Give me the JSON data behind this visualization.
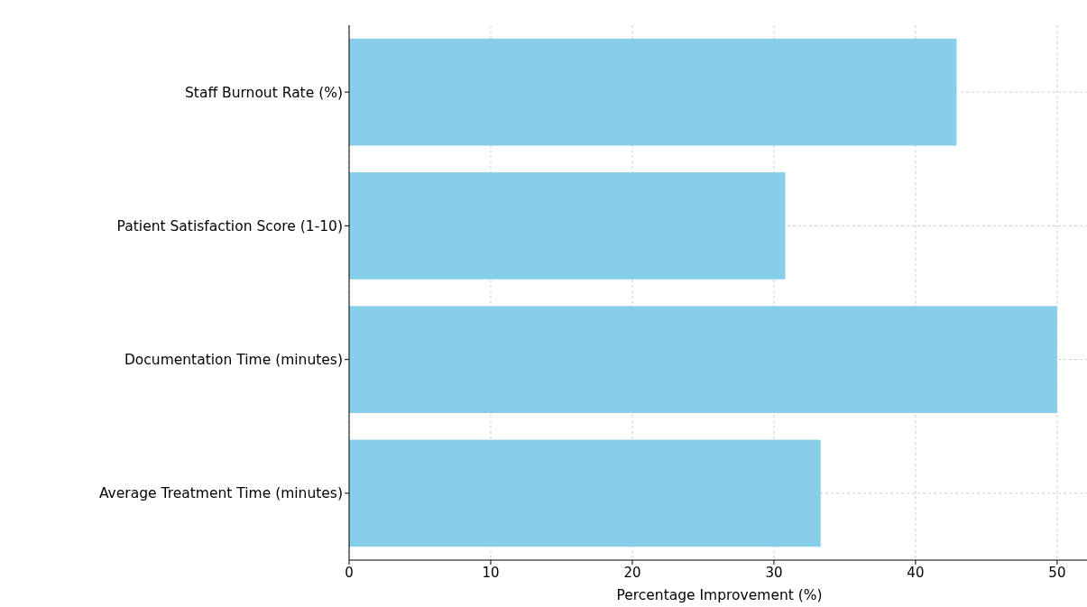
{
  "chart_data": {
    "type": "bar",
    "orientation": "horizontal",
    "xlabel": "Percentage Improvement (%)",
    "categories": [
      "Staff Burnout Rate (%)",
      "Patient Satisfaction Score (1-10)",
      "Documentation Time (minutes)",
      "Average Treatment Time (minutes)"
    ],
    "values": [
      42.9,
      30.8,
      50,
      33.3
    ],
    "color": "#87ceeb",
    "xlim": [
      0,
      52.3
    ],
    "xticks": [
      0,
      10,
      20,
      30,
      40,
      50
    ],
    "grid": true
  }
}
